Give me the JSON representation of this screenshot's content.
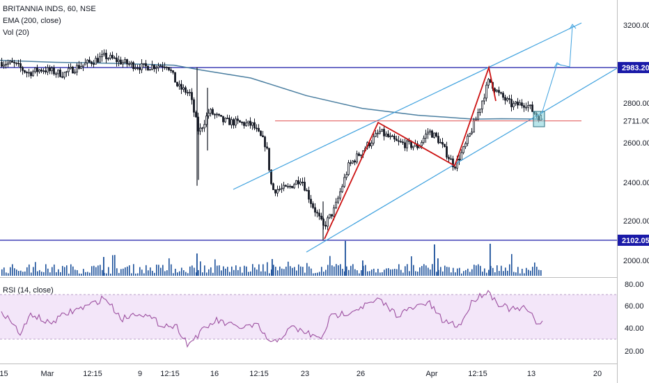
{
  "legend": {
    "symbol": "BRITANNIA INDS, 60, NSE",
    "ema": "EMA (200, close)",
    "vol": "Vol (20)",
    "rsi": "RSI (14, close)"
  },
  "colors": {
    "candle": "#131722",
    "ema": "#4a7ea0",
    "hline": "#1a1aa8",
    "channel": "#3ca0de",
    "zigzag": "#cc1111",
    "support": "#e05050",
    "volume": "#1a4f9a",
    "rsi_line": "#9c4fa0",
    "rsi_band": "#f3e6f9",
    "target_box": "#7fcfd8"
  },
  "chart_data": {
    "type": "candlestick",
    "price_axis": {
      "ticks": [
        "3200.00",
        "2983.20",
        "2800.00",
        "2711.00",
        "2600.00",
        "2400.00",
        "2200.00",
        "2102.05",
        "2000.00"
      ]
    },
    "rsi_axis": {
      "ticks": [
        "80.00",
        "60.00",
        "40.00",
        "20.00"
      ]
    },
    "time_axis": {
      "ticks": [
        ":15",
        "Mar",
        "12:15",
        "9",
        "12:15",
        "16",
        "12:15",
        "23",
        "26",
        "Apr",
        "12:15",
        "13",
        "20"
      ]
    },
    "horizontal_levels": [
      {
        "value": 2983.2,
        "label": "2983.20"
      },
      {
        "value": 2102.05,
        "label": "2102.05"
      }
    ],
    "support_line": 2711.0,
    "last_price_label": "2711.00",
    "rsi_band": [
      30,
      70
    ]
  }
}
